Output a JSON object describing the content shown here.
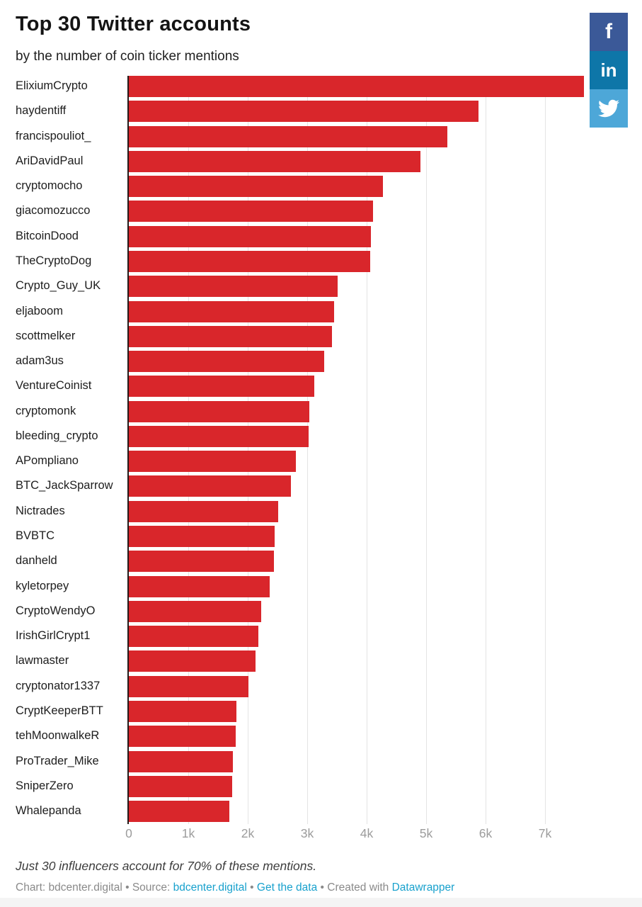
{
  "header": {
    "title": "Top 30 Twitter accounts",
    "subtitle": "by the number of coin ticker mentions"
  },
  "share": {
    "facebook": {
      "label": "f",
      "color": "#3b5998"
    },
    "linkedin": {
      "label": "in",
      "color": "#0e76a8"
    },
    "twitter": {
      "color": "#4da7d8"
    }
  },
  "chart_data": {
    "type": "bar",
    "orientation": "horizontal",
    "bar_color": "#d9262b",
    "grid": true,
    "categories": [
      "ElixiumCrypto",
      "haydentiff",
      "francispouliot_",
      "AriDavidPaul",
      "cryptomocho",
      "giacomozucco",
      "BitcoinDood",
      "TheCryptoDog",
      "Crypto_Guy_UK",
      "eljaboom",
      "scottmelker",
      "adam3us",
      "VentureCoinist",
      "cryptomonk",
      "bleeding_crypto",
      "APompliano",
      "BTC_JackSparrow",
      "Nictrades",
      "BVBTC",
      "danheld",
      "kyletorpey",
      "CryptoWendyO",
      "IrishGirlCrypt1",
      "lawmaster",
      "cryptonator1337",
      "CryptKeeperBTT",
      "tehMoonwalkeR",
      "ProTrader_Mike",
      "SniperZero",
      "Whalepanda"
    ],
    "values": [
      7650,
      5880,
      5360,
      4910,
      4270,
      4110,
      4070,
      4060,
      3510,
      3450,
      3420,
      3290,
      3120,
      3040,
      3020,
      2810,
      2730,
      2510,
      2450,
      2440,
      2370,
      2230,
      2180,
      2130,
      2010,
      1810,
      1800,
      1750,
      1740,
      1690
    ],
    "xlabel": "",
    "ylabel": "",
    "xlim": [
      0,
      7650
    ],
    "tick_values": [
      0,
      1000,
      2000,
      3000,
      4000,
      5000,
      6000,
      7000
    ],
    "tick_labels": [
      "0",
      "1k",
      "2k",
      "3k",
      "4k",
      "5k",
      "6k",
      "7k"
    ]
  },
  "footer": {
    "note": "Just 30 influencers account for 70% of these mentions.",
    "attribution": [
      {
        "text": "Chart: bdcenter.digital",
        "link": false
      },
      {
        "text": " • ",
        "link": false
      },
      {
        "text": "Source: ",
        "link": false
      },
      {
        "text": "bdcenter.digital",
        "link": true
      },
      {
        "text": " • ",
        "link": false
      },
      {
        "text": "Get the data",
        "link": true
      },
      {
        "text": " • ",
        "link": false
      },
      {
        "text": "Created with ",
        "link": false
      },
      {
        "text": "Datawrapper",
        "link": true
      }
    ],
    "link_color": "#18a1cd"
  }
}
